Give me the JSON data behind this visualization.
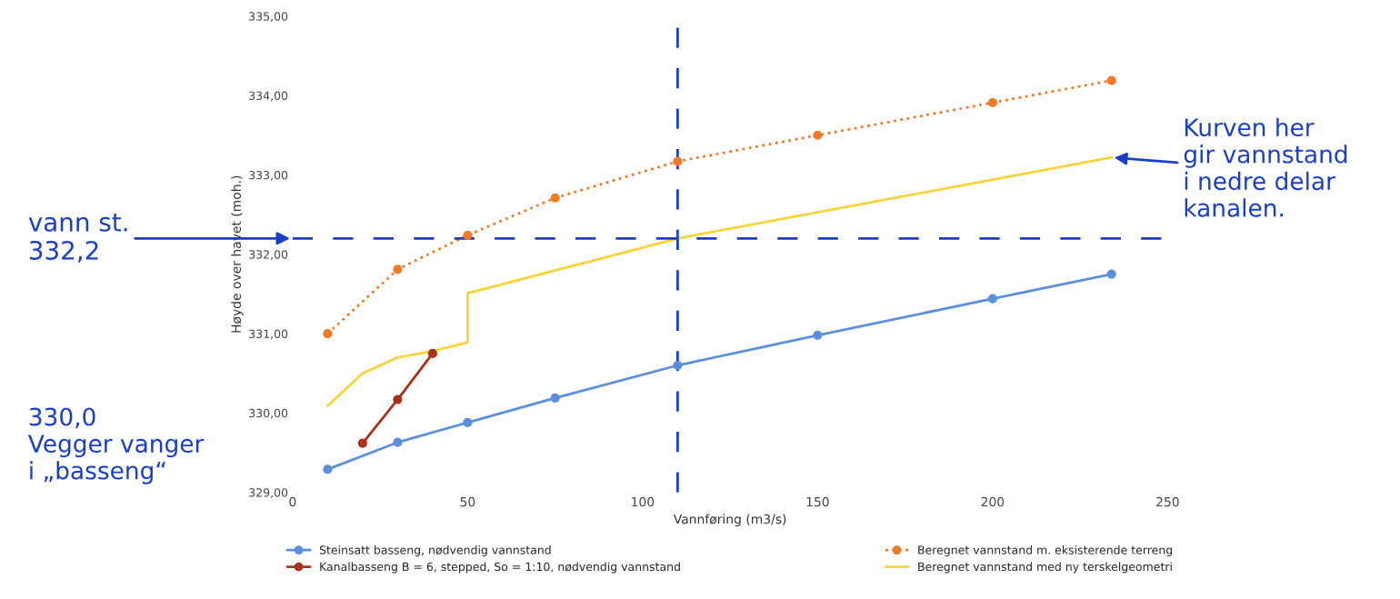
{
  "chart_data": {
    "type": "line",
    "xlabel": "Vannføring (m3/s)",
    "ylabel": "Høyde over havet (moh.)",
    "xlim": [
      0,
      250
    ],
    "xticks": [
      0,
      50,
      100,
      150,
      200,
      250
    ],
    "ylim": [
      329,
      335
    ],
    "yticks": [
      {
        "value": 329,
        "label": "329,00"
      },
      {
        "value": 330,
        "label": "330,00"
      },
      {
        "value": 331,
        "label": "331,00"
      },
      {
        "value": 332,
        "label": "332,00"
      },
      {
        "value": 333,
        "label": "333,00"
      },
      {
        "value": 334,
        "label": "334,00"
      },
      {
        "value": 335,
        "label": "335,00"
      }
    ],
    "grid": false,
    "legend": "bottom",
    "series": [
      {
        "name": "Steinsatt basseng, nødvendig vannstand",
        "color": "#5b8fdc",
        "marker": "circle",
        "line_style": "solid",
        "x": [
          10,
          30,
          50,
          75,
          110,
          150,
          200,
          234
        ],
        "values": [
          329.29,
          329.63,
          329.88,
          330.19,
          330.6,
          330.98,
          331.44,
          331.75
        ]
      },
      {
        "name": "Kanalbasseng B = 6, stepped, So = 1:10, nødvendig vannstand",
        "color": "#a8321c",
        "marker": "circle",
        "line_style": "solid",
        "x": [
          20,
          30,
          40
        ],
        "values": [
          329.62,
          330.17,
          330.75
        ]
      },
      {
        "name": "Beregnet vannstand m. eksisterende terreng",
        "color": "#f07a2a",
        "marker": "circle",
        "line_style": "dotted",
        "x": [
          10,
          30,
          50,
          75,
          110,
          150,
          200,
          234
        ],
        "values": [
          331.0,
          331.81,
          332.24,
          332.71,
          333.17,
          333.5,
          333.91,
          334.19
        ]
      },
      {
        "name": "Beregnet vannstand med ny terskelgeometri",
        "color": "#f7d43a",
        "marker": "none",
        "line_style": "solid",
        "x": [
          10,
          20,
          30,
          40,
          50,
          50,
          110,
          234
        ],
        "values": [
          330.09,
          330.5,
          330.7,
          330.78,
          330.89,
          331.51,
          332.2,
          333.22
        ]
      }
    ],
    "ref_lines": [
      {
        "axis": "y",
        "value": 332.2,
        "label": "vann st.\n332,2",
        "color": "#1a3fc4",
        "line_style": "dashed"
      },
      {
        "axis": "x",
        "value": 110,
        "label": null,
        "color": "#1a3fc4",
        "line_style": "dashed"
      }
    ],
    "annotations": [
      "330,0\nVegger vanger\ni „basseng“",
      {
        "text": "Kurven her\ngir vannstand\ni nedre delar\nkanalen.",
        "x": 234,
        "y": 333.22
      }
    ]
  }
}
